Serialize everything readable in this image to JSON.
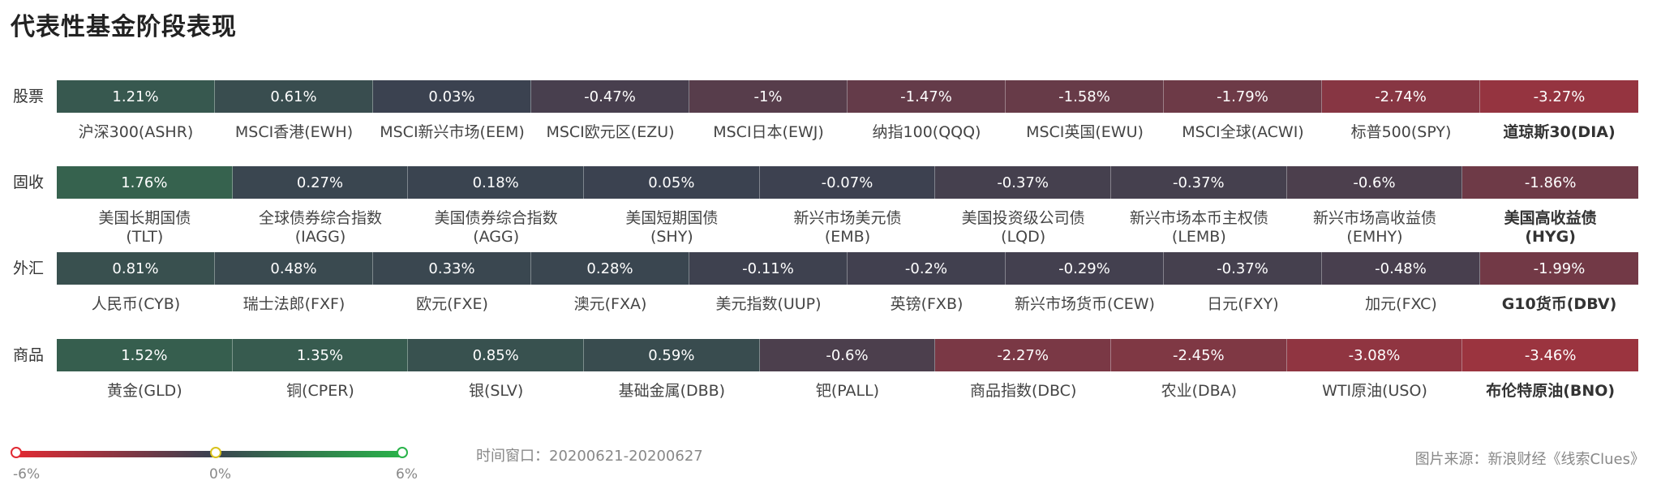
{
  "title": "代表性基金阶段表现",
  "window": "时间窗口：20200621-20200627",
  "source": "图片来源：新浪财经《线索Clues》",
  "legend": {
    "min_label": "-6%",
    "mid_label": "0%",
    "max_label": "6%",
    "colors": {
      "neg": "#e12a33",
      "mid": "#3b4150",
      "pos": "#29b34a"
    }
  },
  "chart_data": {
    "type": "heatmap",
    "color_scale": {
      "min": -6,
      "max": 6
    },
    "rows": [
      {
        "label": "股票",
        "items": [
          {
            "name": "沪深300(ASHR)",
            "value": 1.21,
            "text": "1.21%"
          },
          {
            "name": "MSCI香港(EWH)",
            "value": 0.61,
            "text": "0.61%"
          },
          {
            "name": "MSCI新兴市场(EEM)",
            "value": 0.03,
            "text": "0.03%"
          },
          {
            "name": "MSCI欧元区(EZU)",
            "value": -0.47,
            "text": "-0.47%"
          },
          {
            "name": "MSCI日本(EWJ)",
            "value": -1,
            "text": "-1%"
          },
          {
            "name": "纳指100(QQQ)",
            "value": -1.47,
            "text": "-1.47%"
          },
          {
            "name": "MSCI英国(EWU)",
            "value": -1.58,
            "text": "-1.58%"
          },
          {
            "name": "MSCI全球(ACWI)",
            "value": -1.79,
            "text": "-1.79%"
          },
          {
            "name": "标普500(SPY)",
            "value": -2.74,
            "text": "-2.74%"
          },
          {
            "name": "道琼斯30(DIA)",
            "value": -3.27,
            "text": "-3.27%"
          }
        ]
      },
      {
        "label": "固收",
        "items": [
          {
            "name": "美国长期国债\n(TLT)",
            "value": 1.76,
            "text": "1.76%"
          },
          {
            "name": "全球债券综合指数\n(IAGG)",
            "value": 0.27,
            "text": "0.27%"
          },
          {
            "name": "美国债券综合指数\n(AGG)",
            "value": 0.18,
            "text": "0.18%"
          },
          {
            "name": "美国短期国债\n(SHY)",
            "value": 0.05,
            "text": "0.05%"
          },
          {
            "name": "新兴市场美元债\n(EMB)",
            "value": -0.07,
            "text": "-0.07%"
          },
          {
            "name": "美国投资级公司债\n(LQD)",
            "value": -0.37,
            "text": "-0.37%"
          },
          {
            "name": "新兴市场本币主权债\n(LEMB)",
            "value": -0.37,
            "text": "-0.37%"
          },
          {
            "name": "新兴市场高收益债\n(EMHY)",
            "value": -0.6,
            "text": "-0.6%"
          },
          {
            "name": "美国高收益债\n(HYG)",
            "value": -1.86,
            "text": "-1.86%"
          }
        ]
      },
      {
        "label": "外汇",
        "items": [
          {
            "name": "人民币(CYB)",
            "value": 0.81,
            "text": "0.81%"
          },
          {
            "name": "瑞士法郎(FXF)",
            "value": 0.48,
            "text": "0.48%"
          },
          {
            "name": "欧元(FXE)",
            "value": 0.33,
            "text": "0.33%"
          },
          {
            "name": "澳元(FXA)",
            "value": 0.28,
            "text": "0.28%"
          },
          {
            "name": "美元指数(UUP)",
            "value": -0.11,
            "text": "-0.11%"
          },
          {
            "name": "英镑(FXB)",
            "value": -0.2,
            "text": "-0.2%"
          },
          {
            "name": "新兴市场货币(CEW)",
            "value": -0.29,
            "text": "-0.29%"
          },
          {
            "name": "日元(FXY)",
            "value": -0.37,
            "text": "-0.37%"
          },
          {
            "name": "加元(FXC)",
            "value": -0.48,
            "text": "-0.48%"
          },
          {
            "name": "G10货币(DBV)",
            "value": -1.99,
            "text": "-1.99%"
          }
        ]
      },
      {
        "label": "商品",
        "items": [
          {
            "name": "黄金(GLD)",
            "value": 1.52,
            "text": "1.52%"
          },
          {
            "name": "铜(CPER)",
            "value": 1.35,
            "text": "1.35%"
          },
          {
            "name": "银(SLV)",
            "value": 0.85,
            "text": "0.85%"
          },
          {
            "name": "基础金属(DBB)",
            "value": 0.59,
            "text": "0.59%"
          },
          {
            "name": "钯(PALL)",
            "value": -0.6,
            "text": "-0.6%"
          },
          {
            "name": "商品指数(DBC)",
            "value": -2.27,
            "text": "-2.27%"
          },
          {
            "name": "农业(DBA)",
            "value": -2.45,
            "text": "-2.45%"
          },
          {
            "name": "WTI原油(USO)",
            "value": -3.08,
            "text": "-3.08%"
          },
          {
            "name": "布伦特原油(BNO)",
            "value": -3.46,
            "text": "-3.46%"
          }
        ]
      }
    ]
  }
}
